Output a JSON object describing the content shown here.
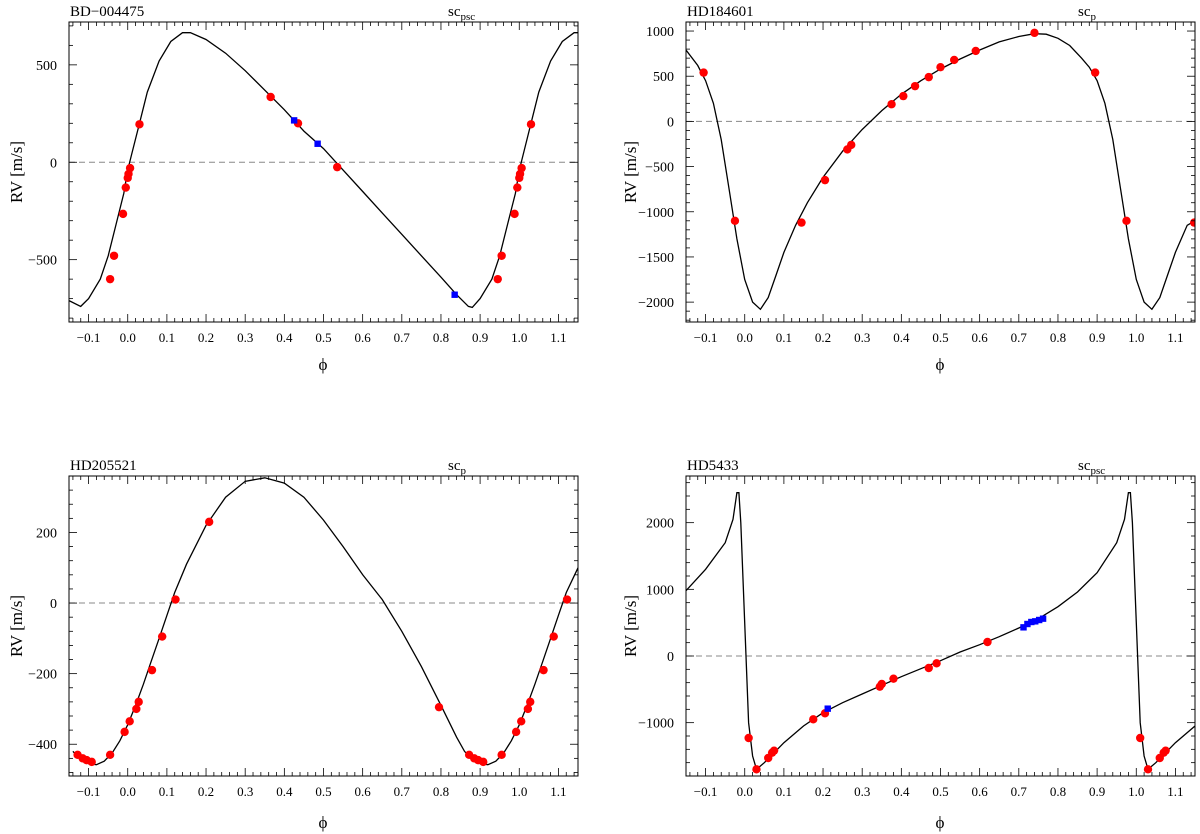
{
  "chart_data": [
    {
      "type": "scatter",
      "title": "BD−004475",
      "subtitle": "sc",
      "subtitle_sub": "psc",
      "xlabel": "ϕ",
      "ylabel": "RV [m/s]",
      "xlim": [
        -0.15,
        1.15
      ],
      "ylim": [
        -820,
        720
      ],
      "xticks": [
        -0.1,
        0.0,
        0.1,
        0.2,
        0.3,
        0.4,
        0.5,
        0.6,
        0.7,
        0.8,
        0.9,
        1.0,
        1.1
      ],
      "xtick_labels": [
        "−0.1",
        "0.0",
        "0.1",
        "0.2",
        "0.3",
        "0.4",
        "0.5",
        "0.6",
        "0.7",
        "0.8",
        "0.9",
        "1.0",
        "1.1"
      ],
      "yticks": [
        -500,
        0,
        500
      ],
      "ytick_labels": [
        "−500",
        "0",
        "500"
      ],
      "zero_line": true,
      "model_curve": [
        [
          -0.15,
          -710
        ],
        [
          -0.12,
          -740
        ],
        [
          -0.1,
          -700
        ],
        [
          -0.07,
          -600
        ],
        [
          -0.05,
          -480
        ],
        [
          -0.03,
          -320
        ],
        [
          -0.01,
          -160
        ],
        [
          0.0,
          -40
        ],
        [
          0.01,
          40
        ],
        [
          0.03,
          200
        ],
        [
          0.05,
          360
        ],
        [
          0.08,
          520
        ],
        [
          0.11,
          620
        ],
        [
          0.14,
          665
        ],
        [
          0.16,
          665
        ],
        [
          0.2,
          630
        ],
        [
          0.25,
          560
        ],
        [
          0.3,
          470
        ],
        [
          0.35,
          370
        ],
        [
          0.4,
          270
        ],
        [
          0.45,
          160
        ],
        [
          0.5,
          70
        ],
        [
          0.55,
          -40
        ],
        [
          0.6,
          -150
        ],
        [
          0.65,
          -260
        ],
        [
          0.7,
          -370
        ],
        [
          0.75,
          -480
        ],
        [
          0.8,
          -590
        ],
        [
          0.84,
          -680
        ],
        [
          0.87,
          -740
        ],
        [
          0.88,
          -745
        ],
        [
          0.9,
          -700
        ],
        [
          0.93,
          -600
        ],
        [
          0.95,
          -480
        ],
        [
          0.97,
          -320
        ],
        [
          0.99,
          -160
        ],
        [
          1.0,
          -40
        ],
        [
          1.01,
          40
        ],
        [
          1.03,
          200
        ],
        [
          1.05,
          360
        ],
        [
          1.08,
          520
        ],
        [
          1.11,
          620
        ],
        [
          1.14,
          665
        ],
        [
          1.15,
          665
        ]
      ],
      "series": [
        {
          "name": "red",
          "color": "#ff0000",
          "marker": "circle",
          "x": [
            -0.045,
            -0.035,
            -0.012,
            -0.005,
            0.0,
            0.002,
            0.006,
            0.03,
            0.365,
            0.435,
            0.535,
            0.945,
            0.955,
            0.988,
            0.995,
            1.0,
            1.002,
            1.006,
            1.03
          ],
          "y": [
            -600,
            -480,
            -265,
            -130,
            -80,
            -60,
            -30,
            195,
            335,
            200,
            -25,
            -600,
            -480,
            -265,
            -130,
            -80,
            -60,
            -30,
            195
          ]
        },
        {
          "name": "blue",
          "color": "#0000ff",
          "marker": "square",
          "x": [
            0.425,
            0.485,
            0.835
          ],
          "y": [
            215,
            95,
            -680
          ]
        }
      ]
    },
    {
      "type": "scatter",
      "title": "HD184601",
      "subtitle": "sc",
      "subtitle_sub": "p",
      "xlabel": "ϕ",
      "ylabel": "RV [m/s]",
      "xlim": [
        -0.15,
        1.15
      ],
      "ylim": [
        -2220,
        1100
      ],
      "xticks": [
        -0.1,
        0.0,
        0.1,
        0.2,
        0.3,
        0.4,
        0.5,
        0.6,
        0.7,
        0.8,
        0.9,
        1.0,
        1.1
      ],
      "xtick_labels": [
        "−0.1",
        "0.0",
        "0.1",
        "0.2",
        "0.3",
        "0.4",
        "0.5",
        "0.6",
        "0.7",
        "0.8",
        "0.9",
        "1.0",
        "1.1"
      ],
      "yticks": [
        -2000,
        -1500,
        -1000,
        -500,
        0,
        500,
        1000
      ],
      "ytick_labels": [
        "−2000",
        "−1500",
        "−1000",
        "−500",
        "0",
        "500",
        "1000"
      ],
      "zero_line": true,
      "model_curve": [
        [
          -0.15,
          790
        ],
        [
          -0.12,
          620
        ],
        [
          -0.1,
          450
        ],
        [
          -0.08,
          200
        ],
        [
          -0.06,
          -200
        ],
        [
          -0.04,
          -750
        ],
        [
          -0.02,
          -1300
        ],
        [
          0.0,
          -1750
        ],
        [
          0.02,
          -2000
        ],
        [
          0.04,
          -2080
        ],
        [
          0.06,
          -1950
        ],
        [
          0.08,
          -1700
        ],
        [
          0.1,
          -1450
        ],
        [
          0.13,
          -1150
        ],
        [
          0.16,
          -900
        ],
        [
          0.2,
          -620
        ],
        [
          0.25,
          -330
        ],
        [
          0.3,
          -90
        ],
        [
          0.35,
          120
        ],
        [
          0.4,
          300
        ],
        [
          0.45,
          450
        ],
        [
          0.5,
          580
        ],
        [
          0.55,
          690
        ],
        [
          0.6,
          790
        ],
        [
          0.65,
          880
        ],
        [
          0.7,
          940
        ],
        [
          0.74,
          970
        ],
        [
          0.77,
          965
        ],
        [
          0.8,
          920
        ],
        [
          0.83,
          840
        ],
        [
          0.86,
          700
        ],
        [
          0.88,
          600
        ],
        [
          0.9,
          450
        ],
        [
          0.92,
          200
        ],
        [
          0.94,
          -200
        ],
        [
          0.96,
          -750
        ],
        [
          0.98,
          -1300
        ],
        [
          1.0,
          -1750
        ],
        [
          1.02,
          -2000
        ],
        [
          1.04,
          -2080
        ],
        [
          1.06,
          -1950
        ],
        [
          1.08,
          -1700
        ],
        [
          1.1,
          -1450
        ],
        [
          1.13,
          -1150
        ],
        [
          1.15,
          -1100
        ]
      ],
      "series": [
        {
          "name": "red",
          "color": "#ff0000",
          "marker": "circle",
          "x": [
            -0.105,
            -0.025,
            0.145,
            0.205,
            0.262,
            0.272,
            0.375,
            0.405,
            0.435,
            0.47,
            0.5,
            0.535,
            0.59,
            0.74,
            0.895,
            0.975,
            1.148
          ],
          "y": [
            540,
            -1100,
            -1120,
            -650,
            -310,
            -260,
            190,
            280,
            390,
            490,
            600,
            680,
            780,
            980,
            540,
            -1100,
            -1120
          ]
        }
      ]
    },
    {
      "type": "scatter",
      "title": "HD205521",
      "subtitle": "sc",
      "subtitle_sub": "p",
      "xlabel": "ϕ",
      "ylabel": "RV [m/s]",
      "xlim": [
        -0.15,
        1.15
      ],
      "ylim": [
        -490,
        360
      ],
      "xticks": [
        -0.1,
        0.0,
        0.1,
        0.2,
        0.3,
        0.4,
        0.5,
        0.6,
        0.7,
        0.8,
        0.9,
        1.0,
        1.1
      ],
      "xtick_labels": [
        "−0.1",
        "0.0",
        "0.1",
        "0.2",
        "0.3",
        "0.4",
        "0.5",
        "0.6",
        "0.7",
        "0.8",
        "0.9",
        "1.0",
        "1.1"
      ],
      "yticks": [
        -400,
        -200,
        0,
        200
      ],
      "ytick_labels": [
        "−400",
        "−200",
        "0",
        "200"
      ],
      "zero_line": true,
      "model_curve": [
        [
          -0.14,
          -420
        ],
        [
          -0.12,
          -445
        ],
        [
          -0.1,
          -455
        ],
        [
          -0.08,
          -458
        ],
        [
          -0.06,
          -448
        ],
        [
          -0.04,
          -425
        ],
        [
          -0.02,
          -390
        ],
        [
          0.0,
          -345
        ],
        [
          0.02,
          -290
        ],
        [
          0.04,
          -230
        ],
        [
          0.06,
          -165
        ],
        [
          0.08,
          -100
        ],
        [
          0.1,
          -35
        ],
        [
          0.12,
          30
        ],
        [
          0.15,
          110
        ],
        [
          0.2,
          220
        ],
        [
          0.25,
          300
        ],
        [
          0.3,
          345
        ],
        [
          0.35,
          355
        ],
        [
          0.4,
          340
        ],
        [
          0.45,
          300
        ],
        [
          0.5,
          235
        ],
        [
          0.55,
          160
        ],
        [
          0.6,
          80
        ],
        [
          0.65,
          10
        ],
        [
          0.7,
          -80
        ],
        [
          0.75,
          -180
        ],
        [
          0.8,
          -290
        ],
        [
          0.84,
          -380
        ],
        [
          0.86,
          -420
        ],
        [
          0.88,
          -445
        ],
        [
          0.9,
          -455
        ],
        [
          0.92,
          -458
        ],
        [
          0.94,
          -448
        ],
        [
          0.96,
          -425
        ],
        [
          0.98,
          -390
        ],
        [
          1.0,
          -345
        ],
        [
          1.02,
          -290
        ],
        [
          1.04,
          -230
        ],
        [
          1.06,
          -165
        ],
        [
          1.08,
          -100
        ],
        [
          1.1,
          -35
        ],
        [
          1.12,
          30
        ],
        [
          1.15,
          100
        ]
      ],
      "series": [
        {
          "name": "red",
          "color": "#ff0000",
          "marker": "circle",
          "x": [
            -0.128,
            -0.115,
            -0.105,
            -0.092,
            -0.045,
            -0.008,
            0.005,
            0.022,
            0.028,
            0.062,
            0.088,
            0.122,
            0.208,
            0.795,
            0.872,
            0.885,
            0.895,
            0.908,
            0.955,
            0.992,
            1.005,
            1.022,
            1.028,
            1.062,
            1.088,
            1.122
          ],
          "y": [
            -430,
            -440,
            -445,
            -450,
            -430,
            -365,
            -335,
            -300,
            -280,
            -190,
            -95,
            10,
            230,
            -295,
            -430,
            -440,
            -445,
            -450,
            -430,
            -365,
            -335,
            -300,
            -280,
            -190,
            -95,
            10
          ]
        }
      ]
    },
    {
      "type": "scatter",
      "title": "HD5433",
      "subtitle": "sc",
      "subtitle_sub": "psc",
      "xlabel": "ϕ",
      "ylabel": "RV [m/s]",
      "xlim": [
        -0.15,
        1.15
      ],
      "ylim": [
        -1800,
        2700
      ],
      "xticks": [
        -0.1,
        0.0,
        0.1,
        0.2,
        0.3,
        0.4,
        0.5,
        0.6,
        0.7,
        0.8,
        0.9,
        1.0,
        1.1
      ],
      "xtick_labels": [
        "−0.1",
        "0.0",
        "0.1",
        "0.2",
        "0.3",
        "0.4",
        "0.5",
        "0.6",
        "0.7",
        "0.8",
        "0.9",
        "1.0",
        "1.1"
      ],
      "yticks": [
        -1000,
        0,
        1000,
        2000
      ],
      "ytick_labels": [
        "−1000",
        "0",
        "1000",
        "2000"
      ],
      "zero_line": true,
      "model_curve": [
        [
          -0.15,
          980
        ],
        [
          -0.1,
          1300
        ],
        [
          -0.05,
          1700
        ],
        [
          -0.03,
          2050
        ],
        [
          -0.02,
          2450
        ],
        [
          -0.015,
          2450
        ],
        [
          -0.01,
          2000
        ],
        [
          0.0,
          500
        ],
        [
          0.01,
          -1000
        ],
        [
          0.02,
          -1500
        ],
        [
          0.03,
          -1700
        ],
        [
          0.05,
          -1600
        ],
        [
          0.1,
          -1300
        ],
        [
          0.15,
          -1050
        ],
        [
          0.2,
          -850
        ],
        [
          0.25,
          -700
        ],
        [
          0.3,
          -570
        ],
        [
          0.35,
          -440
        ],
        [
          0.4,
          -310
        ],
        [
          0.45,
          -190
        ],
        [
          0.5,
          -70
        ],
        [
          0.55,
          60
        ],
        [
          0.6,
          170
        ],
        [
          0.65,
          290
        ],
        [
          0.7,
          420
        ],
        [
          0.75,
          560
        ],
        [
          0.8,
          740
        ],
        [
          0.85,
          960
        ],
        [
          0.9,
          1250
        ],
        [
          0.95,
          1700
        ],
        [
          0.97,
          2050
        ],
        [
          0.98,
          2450
        ],
        [
          0.985,
          2450
        ],
        [
          0.99,
          2000
        ],
        [
          1.0,
          500
        ],
        [
          1.01,
          -1000
        ],
        [
          1.02,
          -1500
        ],
        [
          1.03,
          -1700
        ],
        [
          1.05,
          -1600
        ],
        [
          1.1,
          -1300
        ],
        [
          1.15,
          -1050
        ]
      ],
      "series": [
        {
          "name": "red",
          "color": "#ff0000",
          "marker": "circle",
          "x": [
            0.01,
            0.03,
            0.06,
            0.07,
            0.075,
            0.175,
            0.205,
            0.345,
            0.35,
            0.38,
            0.47,
            0.49,
            0.62,
            1.01,
            1.03,
            1.06,
            1.07,
            1.075
          ],
          "y": [
            -1230,
            -1700,
            -1530,
            -1450,
            -1420,
            -950,
            -860,
            -460,
            -420,
            -340,
            -180,
            -110,
            210,
            -1230,
            -1700,
            -1530,
            -1450,
            -1420
          ]
        },
        {
          "name": "blue",
          "color": "#0000ff",
          "marker": "square",
          "x": [
            0.212,
            0.712,
            0.722,
            0.732,
            0.742,
            0.752,
            0.762
          ],
          "y": [
            -790,
            430,
            480,
            510,
            520,
            540,
            560
          ]
        }
      ]
    }
  ]
}
